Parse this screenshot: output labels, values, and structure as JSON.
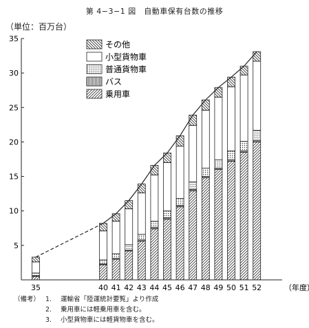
{
  "figure": {
    "title": "第 4−3−1 図　自動車保有台数の推移",
    "unit_label": "（単位：百万台）"
  },
  "notes": {
    "label": "（備考）",
    "items": [
      {
        "num": "1.",
        "text": "運輸省「陸運統計要覧」より作成"
      },
      {
        "num": "2.",
        "text": "乗用車には軽乗用車を含む。"
      },
      {
        "num": "3.",
        "text": "小型貨物車には軽貨物車を含む。"
      }
    ]
  },
  "chart_data": {
    "type": "bar",
    "stacked": true,
    "title": "第 4−3−1 図　自動車保有台数の推移",
    "ylabel": "（単位：百万台）",
    "xlabel": "（年度）",
    "ylim": [
      0,
      35
    ],
    "yticks": [
      5,
      10,
      15,
      20,
      25,
      30,
      35
    ],
    "legend_position": "top-left",
    "categories": [
      "35",
      "40",
      "41",
      "42",
      "43",
      "44",
      "45",
      "46",
      "47",
      "48",
      "49",
      "50",
      "51",
      "52"
    ],
    "series": [
      {
        "name": "乗用車",
        "values": [
          0.5,
          2.2,
          3.0,
          4.2,
          5.6,
          7.4,
          8.8,
          10.6,
          12.9,
          14.8,
          16.0,
          17.2,
          18.5,
          20.0
        ]
      },
      {
        "name": "バス",
        "values": [
          0.1,
          0.1,
          0.1,
          0.1,
          0.2,
          0.2,
          0.2,
          0.2,
          0.2,
          0.2,
          0.2,
          0.2,
          0.2,
          0.2
        ]
      },
      {
        "name": "普通貨物車",
        "values": [
          0.4,
          0.6,
          0.7,
          0.8,
          0.8,
          0.9,
          1.0,
          1.0,
          1.1,
          1.2,
          1.2,
          1.3,
          1.4,
          1.5
        ]
      },
      {
        "name": "小型貨物車",
        "values": [
          1.6,
          4.2,
          4.7,
          5.2,
          6.0,
          6.7,
          7.0,
          7.6,
          8.2,
          8.4,
          9.1,
          9.3,
          9.6,
          10.0
        ]
      },
      {
        "name": "その他",
        "values": [
          0.7,
          1.1,
          1.1,
          1.2,
          1.3,
          1.4,
          1.4,
          1.5,
          1.5,
          1.5,
          1.4,
          1.4,
          1.3,
          1.4
        ]
      }
    ],
    "grid": false
  }
}
